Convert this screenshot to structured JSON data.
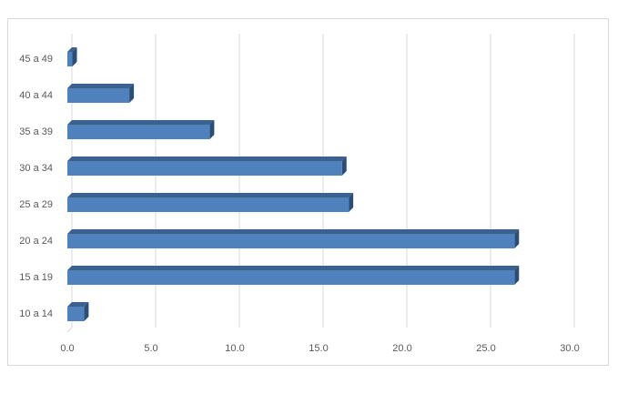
{
  "chart_data": {
    "type": "bar",
    "orientation": "horizontal",
    "categories": [
      "10 a 14",
      "15 a 19",
      "20 a 24",
      "25 a 29",
      "30 a 34",
      "35 a 39",
      "40 a 44",
      "45 a 49"
    ],
    "values": [
      1.0,
      26.7,
      26.7,
      16.8,
      16.4,
      8.5,
      3.7,
      0.3
    ],
    "color": "#4f81bd",
    "xlim": [
      0,
      30
    ],
    "xticks": [
      {
        "value": 0,
        "label": "0.0"
      },
      {
        "value": 5,
        "label": "5.0"
      },
      {
        "value": 10,
        "label": "10.0"
      },
      {
        "value": 15,
        "label": "15.0"
      },
      {
        "value": 20,
        "label": "20.0"
      },
      {
        "value": 25,
        "label": "25.0"
      },
      {
        "value": 30,
        "label": "30.0"
      }
    ],
    "grid": true
  }
}
